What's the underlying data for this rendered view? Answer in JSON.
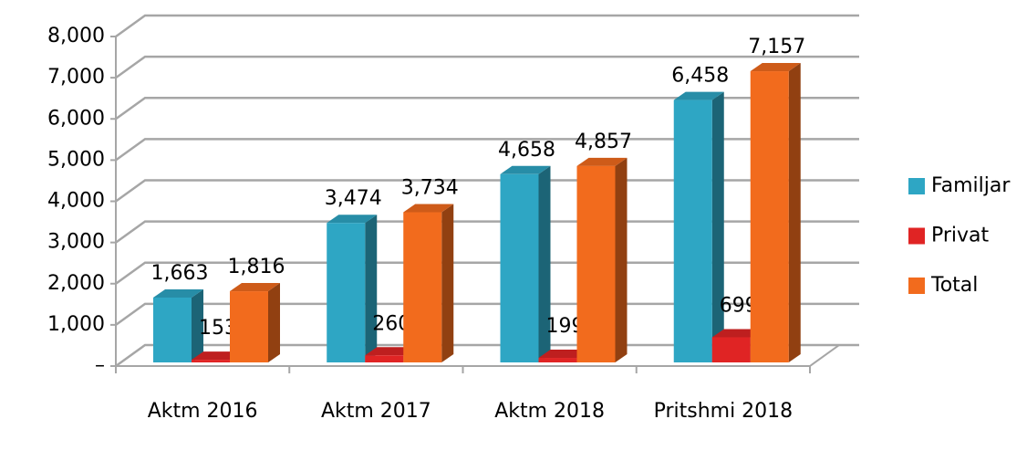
{
  "chart_data": {
    "type": "bar3d",
    "categories": [
      "Aktm 2016",
      "Aktm 2017",
      "Aktm 2018",
      "Pritshmi 2018"
    ],
    "series": [
      {
        "name": "Familjar",
        "color": "#2ea6c4",
        "values": [
          1663,
          3474,
          4658,
          6458
        ],
        "value_labels": [
          "1,663",
          "3,474",
          "4,658",
          "6,458"
        ]
      },
      {
        "name": "Privat",
        "color": "#e02424",
        "values": [
          153,
          260,
          199,
          699
        ],
        "value_labels": [
          "153",
          "260",
          "199",
          "699"
        ]
      },
      {
        "name": "Total",
        "color": "#f26b1d",
        "values": [
          1816,
          3734,
          4857,
          7157
        ],
        "value_labels": [
          "1,816",
          "3,734",
          "4,857",
          "7,157"
        ]
      }
    ],
    "ylim": [
      0,
      8000
    ],
    "yticks": [
      {
        "value": 0,
        "label": "–"
      },
      {
        "value": 1000,
        "label": "1,000"
      },
      {
        "value": 2000,
        "label": "2,000"
      },
      {
        "value": 3000,
        "label": "3,000"
      },
      {
        "value": 4000,
        "label": "4,000"
      },
      {
        "value": 5000,
        "label": "5,000"
      },
      {
        "value": 6000,
        "label": "6,000"
      },
      {
        "value": 7000,
        "label": "7,000"
      },
      {
        "value": 8000,
        "label": "8,000"
      }
    ],
    "grid": true,
    "legend": "right"
  }
}
